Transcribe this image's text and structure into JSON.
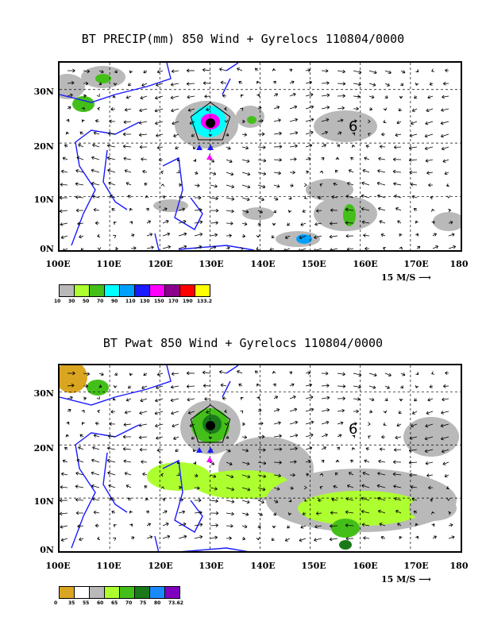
{
  "panels": [
    {
      "title": "BT PRECIP(mm) 850 Wind + Gyrelocs 110804/0000",
      "ylabels": [
        "30N",
        "20N",
        "10N",
        "0N"
      ],
      "xlabels": [
        "100E",
        "110E",
        "120E",
        "130E",
        "140E",
        "150E",
        "160E",
        "170E",
        "180"
      ],
      "ref_vector": "15 M/S",
      "legend_colors": [
        "#b9b9b9",
        "#adff2f",
        "#44bf1a",
        "#00ffff",
        "#00a0ff",
        "#1a1aff",
        "#ff00ff",
        "#8b008b",
        "#ff0000",
        "#ffff00"
      ],
      "legend_labels": [
        "10",
        "30",
        "50",
        "70",
        "90",
        "110",
        "130",
        "150",
        "170",
        "190",
        "133.2"
      ],
      "gyre_marker": "6"
    },
    {
      "title": "BT Pwat 850 Wind + Gyrelocs 110804/0000",
      "ylabels": [
        "30N",
        "20N",
        "10N",
        "0N"
      ],
      "xlabels": [
        "100E",
        "110E",
        "120E",
        "130E",
        "140E",
        "150E",
        "160E",
        "170E",
        "180"
      ],
      "ref_vector": "15 M/S",
      "legend_colors": [
        "#daa520",
        "#ffffff",
        "#b9b9b9",
        "#adff2f",
        "#44bf1a",
        "#1a7a1a",
        "#1a8aff",
        "#8000c0"
      ],
      "legend_labels": [
        "0",
        "35",
        "55",
        "60",
        "65",
        "70",
        "75",
        "80",
        "73.62"
      ],
      "gyre_marker": "6"
    }
  ]
}
